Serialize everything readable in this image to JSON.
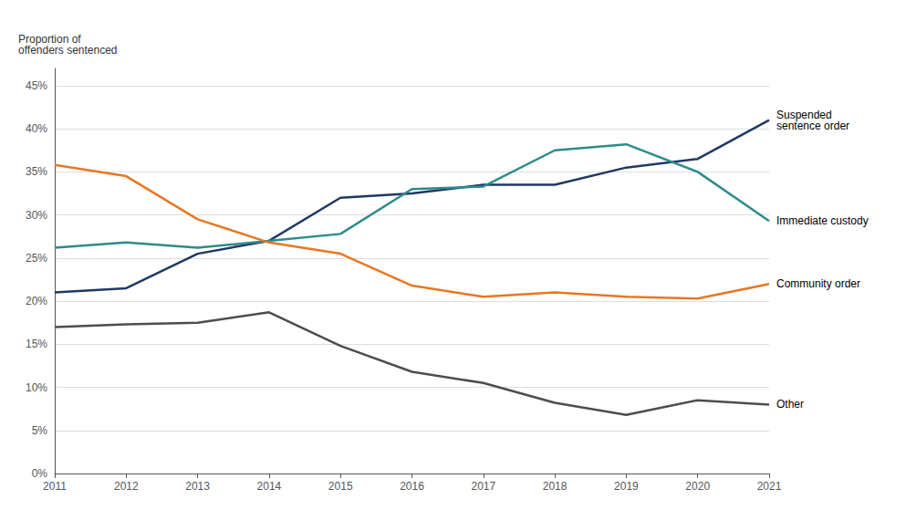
{
  "chart_data": {
    "type": "line",
    "ylabel": "Proportion of\noffenders sentenced",
    "x": [
      2011,
      2012,
      2013,
      2014,
      2015,
      2016,
      2017,
      2018,
      2019,
      2020,
      2021
    ],
    "series": [
      {
        "name": "Suspended\nsentence order",
        "color": "#1f3864",
        "values": [
          0.21,
          0.215,
          0.255,
          0.27,
          0.32,
          0.325,
          0.335,
          0.335,
          0.355,
          0.365,
          0.41
        ]
      },
      {
        "name": "Immediate custody",
        "color": "#2e8b8b",
        "values": [
          0.262,
          0.268,
          0.262,
          0.27,
          0.278,
          0.33,
          0.333,
          0.375,
          0.382,
          0.35,
          0.293
        ]
      },
      {
        "name": "Community order",
        "color": "#e87722",
        "values": [
          0.358,
          0.345,
          0.295,
          0.268,
          0.255,
          0.218,
          0.205,
          0.21,
          0.205,
          0.203,
          0.22
        ]
      },
      {
        "name": "Other",
        "color": "#4d4d4d",
        "values": [
          0.17,
          0.173,
          0.175,
          0.187,
          0.148,
          0.118,
          0.105,
          0.082,
          0.068,
          0.085,
          0.08
        ]
      }
    ],
    "xlim": [
      2011,
      2021
    ],
    "xticks": [
      2011,
      2012,
      2013,
      2014,
      2015,
      2016,
      2017,
      2018,
      2019,
      2020,
      2021
    ],
    "ylim": [
      0,
      0.47
    ],
    "yticks": [
      {
        "value": 0.0,
        "label": "0%"
      },
      {
        "value": 0.05,
        "label": "5%"
      },
      {
        "value": 0.1,
        "label": "10%"
      },
      {
        "value": 0.15,
        "label": "15%"
      },
      {
        "value": 0.2,
        "label": "20%"
      },
      {
        "value": 0.25,
        "label": "25%"
      },
      {
        "value": 0.3,
        "label": "30%"
      },
      {
        "value": 0.35,
        "label": "35%"
      },
      {
        "value": 0.4,
        "label": "40%"
      },
      {
        "value": 0.45,
        "label": "45%"
      }
    ],
    "grid": true
  }
}
